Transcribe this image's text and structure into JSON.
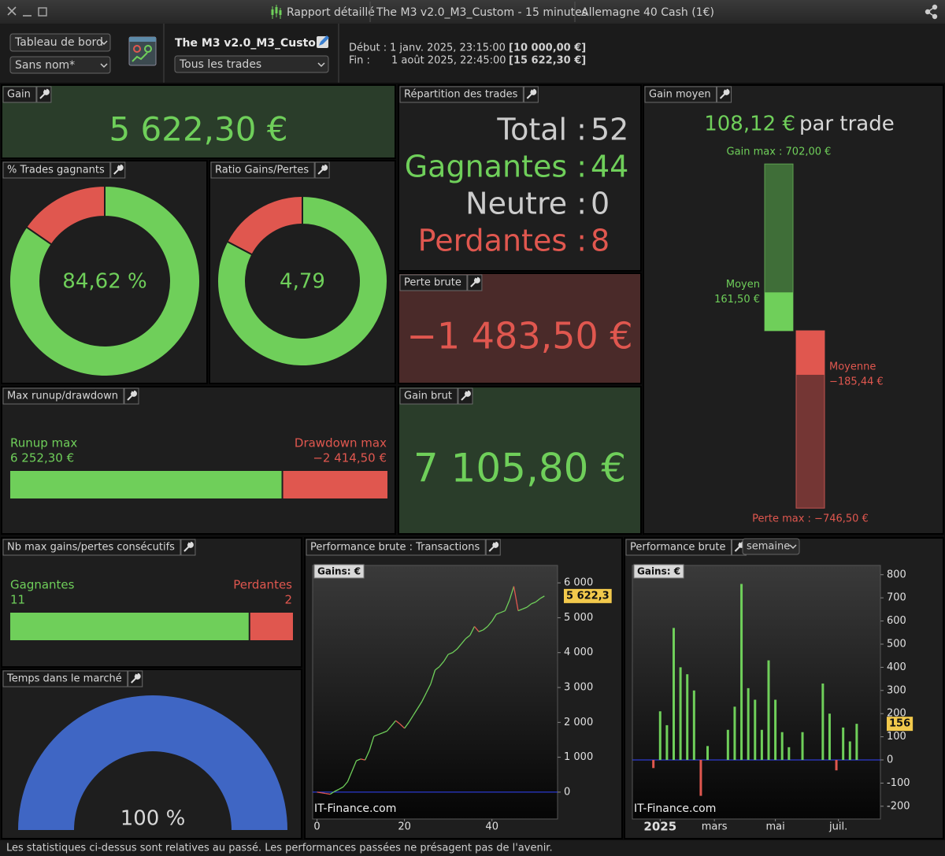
{
  "window": {
    "title": "Rapport détaillé",
    "strategy": "The M3 v2.0_M3_Custom - 15 minutes",
    "instrument": "Allemagne 40 Cash (1€)"
  },
  "toolbar": {
    "view": "Tableau de bord",
    "layout": "Sans nom*",
    "strategy": "The M3 v2.0_M3_Custom",
    "filter": "Tous les trades",
    "start_label": "Début :",
    "start_date": "1 janv. 2025, 23:15:00",
    "start_capital": "[10 000,00 €]",
    "end_label": "Fin :",
    "end_date": "1 août 2025, 22:45:00",
    "end_capital": "[15 622,30 €]"
  },
  "panels": {
    "gain": {
      "title": "Gain",
      "value": "5 622,30 €"
    },
    "win_rate": {
      "title": "% Trades gagnants",
      "value": 84.62,
      "label": "84,62 %"
    },
    "ratio": {
      "title": "Ratio Gains/Pertes",
      "value": 4.79,
      "label": "4,79"
    },
    "distribution": {
      "title": "Répartition des trades",
      "rows": [
        {
          "name": "Total :",
          "value": 52,
          "color": "#cccccc"
        },
        {
          "name": "Gagnantes :",
          "value": 44,
          "color": "#6fcf5a"
        },
        {
          "name": "Neutre :",
          "value": 0,
          "color": "#cccccc"
        },
        {
          "name": "Perdantes :",
          "value": 8,
          "color": "#e0574f"
        }
      ]
    },
    "gross_loss": {
      "title": "Perte brute",
      "value": "−1 483,50 €"
    },
    "average_gain": {
      "title": "Gain moyen",
      "value": 108.12,
      "label": "108,12 €",
      "unit": "par trade",
      "gain_max": {
        "value": 702,
        "label": "Gain max : 702,00 €"
      },
      "gain_avg": {
        "name": "Moyen",
        "value": 161.5,
        "label": "161,50 €"
      },
      "loss_avg": {
        "name": "Moyenne",
        "value": -185.44,
        "label": "−185,44 €"
      },
      "loss_max": {
        "value": -746.5,
        "label": "Perte max : −746,50 €"
      }
    },
    "runup": {
      "title": "Max runup/drawdown",
      "runup_name": "Runup max",
      "runup": {
        "value": 6252.3,
        "label": "6 252,30 €"
      },
      "drawdown_name": "Drawdown max",
      "drawdown": {
        "value": -2414.5,
        "label": "−2 414,50 €"
      }
    },
    "gross_gain": {
      "title": "Gain brut",
      "value": "7 105,80 €"
    },
    "streaks": {
      "title": "Nb max gains/pertes consécutifs",
      "win_name": "Gagnantes",
      "wins": 11,
      "loss_name": "Perdantes",
      "losses": 2
    },
    "time_in_market": {
      "title": "Temps dans le marché",
      "value": 100,
      "label": "100 %",
      "color": "#3f66c4"
    }
  },
  "charts": [
    {
      "type": "line",
      "title": "Performance brute : Transactions",
      "y_label": "Gains: €",
      "watermark": "IT-Finance.com",
      "x": [
        0,
        1,
        2,
        3,
        4,
        5,
        6,
        7,
        8,
        9,
        10,
        11,
        12,
        13,
        14,
        15,
        16,
        17,
        18,
        19,
        20,
        21,
        22,
        23,
        24,
        25,
        26,
        27,
        28,
        29,
        30,
        31,
        32,
        33,
        34,
        35,
        36,
        37,
        38,
        39,
        40,
        41,
        42,
        43,
        44,
        45,
        46,
        47,
        48,
        49,
        50,
        51,
        52
      ],
      "values": [
        0,
        -20,
        -40,
        -60,
        20,
        80,
        150,
        300,
        600,
        900,
        950,
        920,
        1200,
        1600,
        1650,
        1700,
        1750,
        1900,
        2050,
        1950,
        1830,
        2000,
        2200,
        2400,
        2600,
        2850,
        3100,
        3500,
        3600,
        3750,
        3950,
        4000,
        4100,
        4250,
        4400,
        4500,
        4750,
        4600,
        4650,
        4750,
        4900,
        5100,
        5150,
        5200,
        5500,
        5900,
        5200,
        5250,
        5300,
        5400,
        5450,
        5550,
        5622.3
      ],
      "last_value_label": "5 622,3",
      "up_color": "#6fcf5a",
      "down_color": "#e0574f",
      "zero_color": "#3344ff",
      "xlim": [
        -1,
        55
      ],
      "ylim": [
        -770,
        6500
      ],
      "xticks": [
        0,
        20,
        40
      ],
      "yticks": [
        0,
        {
          "value": 1000,
          "label": "1 000"
        },
        {
          "value": 2000,
          "label": "2 000"
        },
        {
          "value": 3000,
          "label": "3 000"
        },
        {
          "value": 4000,
          "label": "4 000"
        },
        {
          "value": 5000,
          "label": "5 000"
        },
        {
          "value": 6000,
          "label": "6 000"
        }
      ]
    },
    {
      "type": "bar",
      "title": "Performance brute",
      "period": "semaine",
      "y_label": "Gains: €",
      "watermark": "IT-Finance.com",
      "x": [
        0,
        1,
        2,
        3,
        4,
        5,
        6,
        7,
        8,
        9,
        10,
        11,
        12,
        13,
        14,
        15,
        16,
        17,
        18,
        19,
        20,
        21,
        22,
        23,
        24,
        25,
        26,
        27,
        28,
        29,
        30
      ],
      "values": [
        -35,
        210,
        150,
        570,
        400,
        370,
        300,
        -155,
        60,
        0,
        0,
        130,
        230,
        760,
        310,
        260,
        130,
        430,
        260,
        120,
        55,
        0,
        120,
        0,
        0,
        330,
        200,
        -45,
        140,
        80,
        156
      ],
      "last_value_label": "156",
      "up_color": "#6fcf5a",
      "down_color": "#e0574f",
      "zero_color": "#3344ff",
      "xlim": [
        -3.1,
        33.5
      ],
      "ylim": [
        -255,
        840
      ],
      "xticks": [
        {
          "value": 1,
          "label": "2025"
        },
        {
          "value": 9,
          "label": "mars"
        },
        {
          "value": 18,
          "label": "mai"
        },
        {
          "value": 27.3,
          "label": "juil."
        }
      ],
      "yticks": [
        -200,
        -100,
        0,
        100,
        200,
        300,
        400,
        500,
        600,
        700,
        800
      ]
    }
  ],
  "footer": "Les statistiques ci-dessus sont relatives au passé. Les performances passées ne présagent pas de l'avenir."
}
